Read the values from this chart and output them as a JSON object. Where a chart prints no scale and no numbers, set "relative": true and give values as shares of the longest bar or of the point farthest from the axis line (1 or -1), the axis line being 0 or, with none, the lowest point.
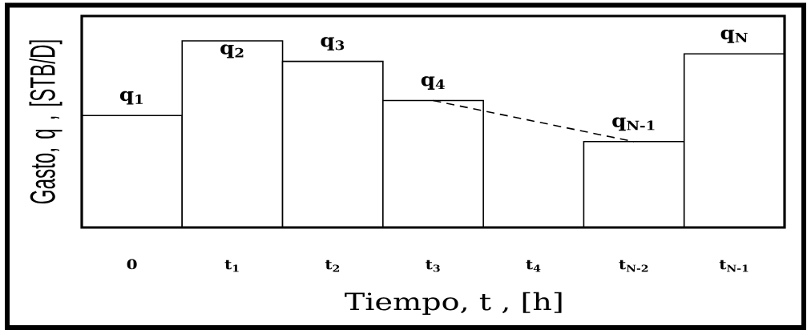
{
  "chart_data": {
    "type": "bar",
    "relative": true,
    "xlabel": "Tiempo, t , [h]",
    "ylabel": "Gasto, q , [STB/D]",
    "categories": [
      "0",
      "t$_{1}$",
      "t$_{2}$",
      "t$_{3}$",
      "t$_{4}$",
      "t$_{N-2}$",
      "t$_{N-1}$"
    ],
    "series": [
      {
        "color": "#000000",
        "values": [
          0.6,
          1,
          0.89,
          0.68,
          0,
          0.46,
          0.93
        ]
      },
      {
        "type": "line",
        "color": "#000000",
        "line_style": "dashed",
        "x": [
          "t$_{3}$",
          "t$_{N-2}$"
        ],
        "values": [
          0.68,
          0.46
        ]
      }
    ],
    "annotations": [
      {
        "text": "q$_{1}$",
        "x": "0",
        "y": 0.6
      },
      {
        "text": "q$_{2}$",
        "x": "t$_{1}$",
        "y": 1
      },
      {
        "text": "q$_{3}$",
        "x": "t$_{2}$",
        "y": 0.89
      },
      {
        "text": "q$_{4}$",
        "x": "t$_{3}$",
        "y": 0.68
      },
      {
        "text": "q$_{N-1}$",
        "x": "t$_{N-2}$",
        "y": 0.46
      },
      {
        "text": "q$_{N}$",
        "x": "t$_{N-1}$",
        "y": 0.93
      }
    ]
  }
}
